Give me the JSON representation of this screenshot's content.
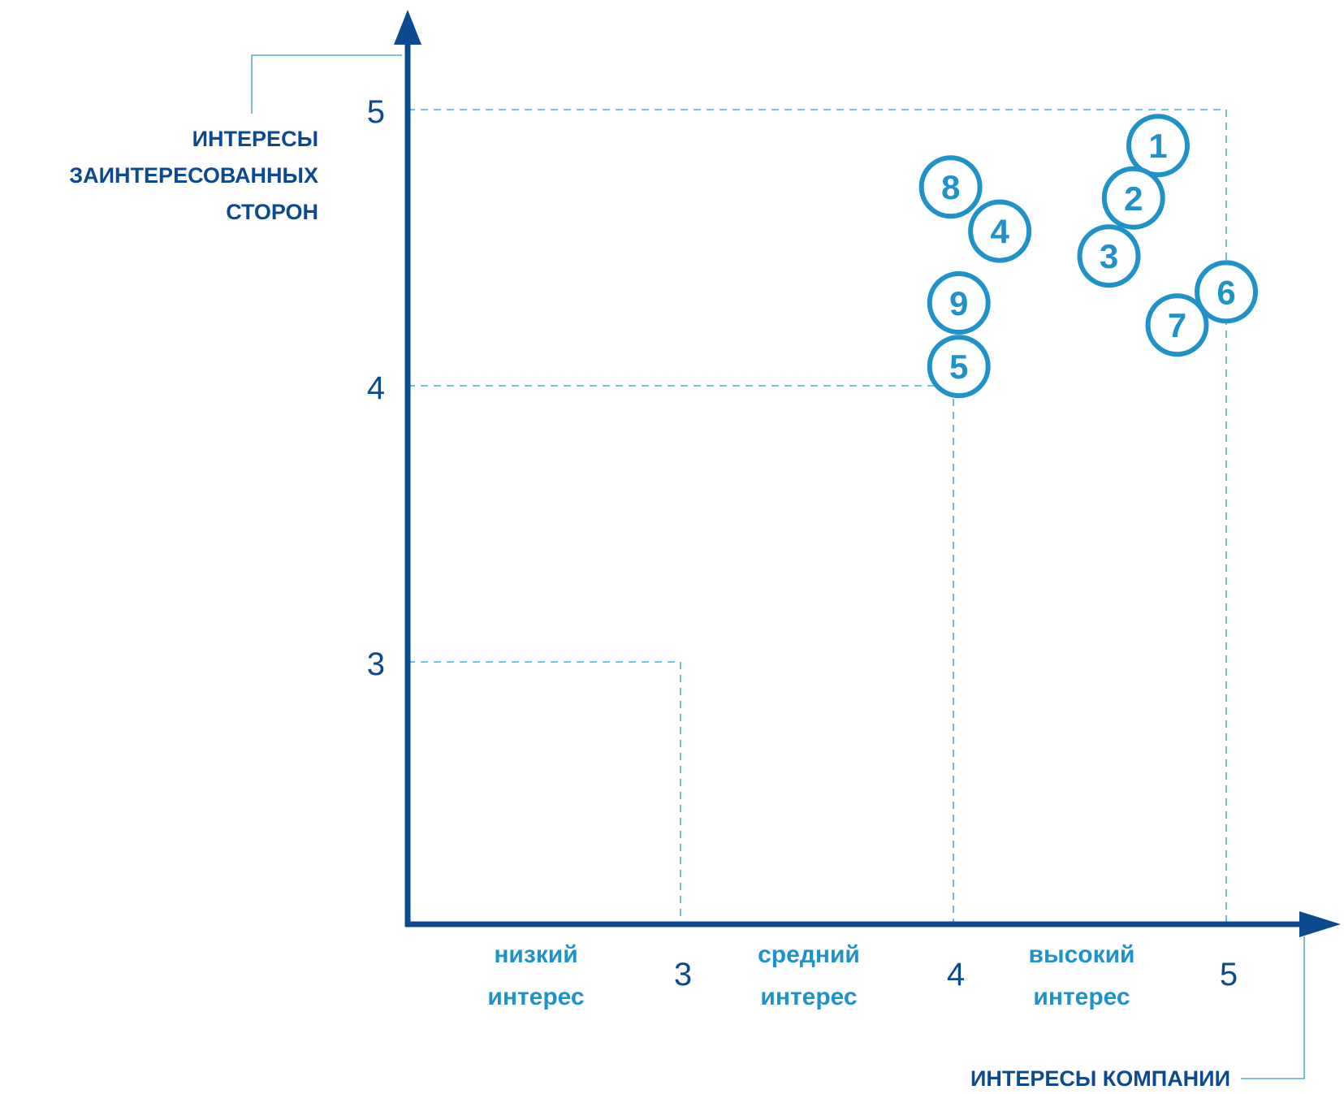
{
  "chart_data": {
    "type": "scatter",
    "x_axis_title": "ИНТЕРЕСЫ КОМПАНИИ",
    "y_axis_title_lines": [
      "ИНТЕРЕСЫ",
      "ЗАИНТЕРЕСОВАННЫХ",
      "СТОРОН"
    ],
    "x_ticks": [
      "3",
      "4",
      "5"
    ],
    "y_ticks": [
      "3",
      "4",
      "5"
    ],
    "xlim": [
      2,
      5.25
    ],
    "ylim": [
      2.05,
      5.3
    ],
    "zones": [
      {
        "x_from": 2,
        "x_to": 3,
        "lines": [
          "низкий",
          "интерес"
        ]
      },
      {
        "x_from": 3,
        "x_to": 4,
        "lines": [
          "средний",
          "интерес"
        ]
      },
      {
        "x_from": 4,
        "x_to": 5,
        "lines": [
          "высокий",
          "интерес"
        ]
      }
    ],
    "guides": [
      {
        "x": 3,
        "y": 3
      },
      {
        "x": 4,
        "y": 4
      },
      {
        "x": 5,
        "y": 5
      }
    ],
    "points": [
      {
        "label": "1",
        "x": 4.75,
        "y": 4.87
      },
      {
        "label": "2",
        "x": 4.66,
        "y": 4.68
      },
      {
        "label": "3",
        "x": 4.57,
        "y": 4.47
      },
      {
        "label": "4",
        "x": 4.17,
        "y": 4.56
      },
      {
        "label": "5",
        "x": 4.02,
        "y": 4.07
      },
      {
        "label": "6",
        "x": 5.0,
        "y": 4.34
      },
      {
        "label": "7",
        "x": 4.82,
        "y": 4.22
      },
      {
        "label": "8",
        "x": 3.99,
        "y": 4.72
      },
      {
        "label": "9",
        "x": 4.02,
        "y": 4.3
      }
    ],
    "grid": false,
    "colors": {
      "axis": "#0b4a8f",
      "guide": "#4aa8d8",
      "marker": "#1f93c9",
      "callout": "#5aa9d6"
    }
  }
}
